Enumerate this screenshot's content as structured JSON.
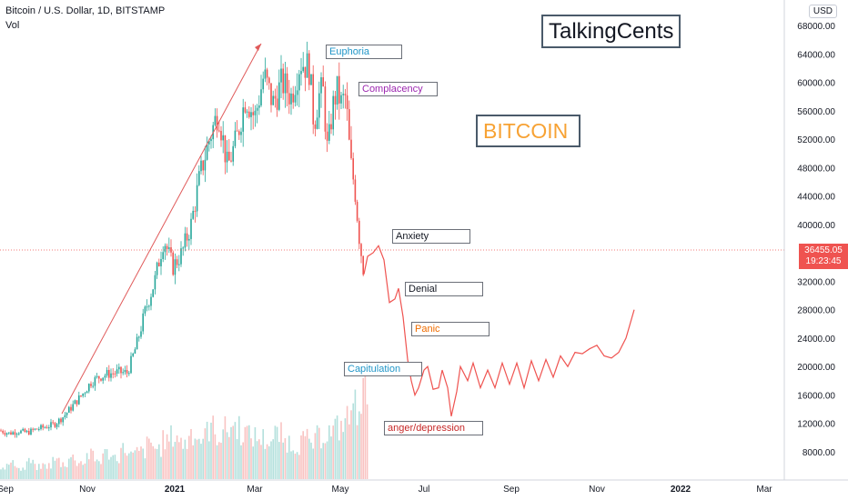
{
  "header": {
    "symbol": "Bitcoin / U.S. Dollar, 1D, BITSTAMP",
    "vol_label": "Vol",
    "currency": "USD"
  },
  "last_price": {
    "value": "36455.05",
    "countdown": "19:23:45"
  },
  "labels": {
    "euphoria": "Euphoria",
    "complacency": "Complacency",
    "anxiety": "Anxiety",
    "denial": "Denial",
    "panic": "Panic",
    "capitulation": "Capitulation",
    "anger": "anger/depression",
    "brand": "TalkingCents",
    "bitcoin": "BITCOIN"
  },
  "colors": {
    "up": "#26a69a",
    "down": "#ef5350",
    "arrow": "#e05a5a",
    "euphoria": "#2196c8",
    "complacency": "#9c27b0",
    "anxiety": "#131722",
    "denial": "#131722",
    "panic": "#ef6c00",
    "capitulation": "#2196c8",
    "anger": "#c62828",
    "bitcoin": "#f7a234"
  },
  "chart_data": {
    "type": "candlestick",
    "price_axis": {
      "ylim": [
        4000,
        70000
      ],
      "ticks": [
        "68000.00",
        "64000.00",
        "60000.00",
        "56000.00",
        "52000.00",
        "48000.00",
        "44000.00",
        "40000.00",
        "32000.00",
        "28000.00",
        "24000.00",
        "20000.00",
        "16000.00",
        "12000.00",
        "8000.00"
      ]
    },
    "time_axis": {
      "labels": [
        "Sep",
        "Nov",
        "2021",
        "Mar",
        "May",
        "Jul",
        "Sep",
        "Nov",
        "2022",
        "Mar"
      ],
      "bold": [
        "2021",
        "2022"
      ]
    },
    "price_path": [
      [
        0,
        11000
      ],
      [
        10,
        10600
      ],
      [
        20,
        10900
      ],
      [
        30,
        10700
      ],
      [
        40,
        11200
      ],
      [
        50,
        11500
      ],
      [
        60,
        11900
      ],
      [
        70,
        13000
      ],
      [
        80,
        14500
      ],
      [
        90,
        16000
      ],
      [
        100,
        17800
      ],
      [
        110,
        18600
      ],
      [
        120,
        19000
      ],
      [
        130,
        19200
      ],
      [
        140,
        19100
      ],
      [
        150,
        23000
      ],
      [
        160,
        28000
      ],
      [
        170,
        32000
      ],
      [
        180,
        38000
      ],
      [
        190,
        34000
      ],
      [
        200,
        36000
      ],
      [
        210,
        40000
      ],
      [
        220,
        47000
      ],
      [
        230,
        52000
      ],
      [
        240,
        56000
      ],
      [
        250,
        48000
      ],
      [
        260,
        52000
      ],
      [
        270,
        58000
      ],
      [
        280,
        55000
      ],
      [
        290,
        61000
      ],
      [
        300,
        57000
      ],
      [
        310,
        60000
      ],
      [
        320,
        58000
      ],
      [
        330,
        63000
      ],
      [
        340,
        62000
      ],
      [
        345,
        54000
      ],
      [
        350,
        58000
      ],
      [
        355,
        59000
      ],
      [
        360,
        50000
      ],
      [
        365,
        56000
      ],
      [
        370,
        59000
      ],
      [
        375,
        57000
      ],
      [
        380,
        58000
      ],
      [
        385,
        49000
      ],
      [
        390,
        45000
      ],
      [
        395,
        38000
      ],
      [
        400,
        33000
      ]
    ],
    "projection": [
      [
        400,
        33000
      ],
      [
        404,
        35500
      ],
      [
        410,
        36000
      ],
      [
        416,
        37000
      ],
      [
        422,
        35000
      ],
      [
        428,
        29000
      ],
      [
        434,
        29500
      ],
      [
        438,
        31000
      ],
      [
        443,
        27000
      ],
      [
        448,
        21000
      ],
      [
        452,
        18000
      ],
      [
        456,
        16000
      ],
      [
        460,
        17000
      ],
      [
        466,
        19500
      ],
      [
        470,
        20000
      ],
      [
        476,
        16800
      ],
      [
        482,
        17000
      ],
      [
        486,
        19500
      ],
      [
        492,
        17000
      ],
      [
        496,
        13000
      ],
      [
        502,
        16500
      ],
      [
        506,
        20000
      ],
      [
        514,
        18000
      ],
      [
        520,
        20500
      ],
      [
        528,
        17000
      ],
      [
        536,
        19500
      ],
      [
        544,
        17000
      ],
      [
        552,
        20500
      ],
      [
        560,
        17500
      ],
      [
        568,
        20500
      ],
      [
        576,
        17000
      ],
      [
        584,
        20800
      ],
      [
        592,
        18000
      ],
      [
        600,
        21000
      ],
      [
        608,
        18500
      ],
      [
        616,
        21500
      ],
      [
        624,
        20000
      ],
      [
        632,
        22000
      ],
      [
        640,
        21800
      ],
      [
        648,
        22500
      ],
      [
        656,
        23000
      ],
      [
        664,
        21500
      ],
      [
        672,
        21200
      ],
      [
        680,
        22000
      ],
      [
        688,
        24000
      ],
      [
        697,
        28000
      ]
    ],
    "volume": [
      0.15,
      0.18,
      0.12,
      0.2,
      0.14,
      0.16,
      0.22,
      0.18,
      0.25,
      0.2,
      0.28,
      0.22,
      0.3,
      0.26,
      0.35,
      0.28,
      0.32,
      0.4,
      0.36,
      0.45,
      0.5,
      0.42,
      0.55,
      0.48,
      0.6,
      0.52,
      0.58,
      0.62,
      0.55,
      0.5,
      0.48,
      0.45,
      0.52,
      0.44,
      0.4,
      0.46,
      0.42,
      0.5,
      0.55,
      0.6,
      0.7,
      0.85,
      1.0
    ]
  }
}
